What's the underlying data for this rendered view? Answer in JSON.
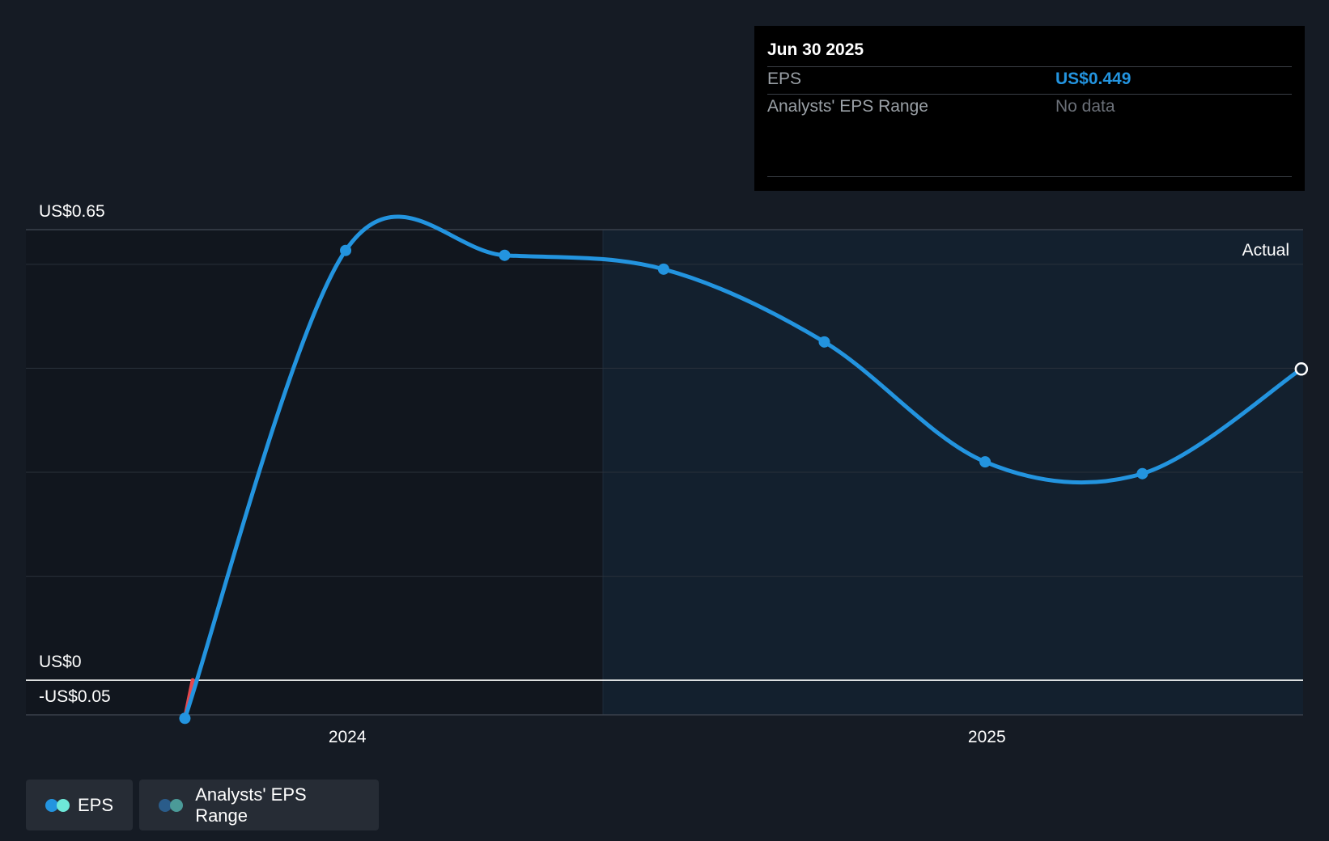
{
  "chart_data": {
    "type": "line",
    "x": [
      "2023-09-30",
      "2023-12-31",
      "2024-03-31",
      "2024-06-30",
      "2024-09-30",
      "2024-12-31",
      "2025-03-31",
      "2025-06-30"
    ],
    "series": [
      {
        "name": "EPS",
        "values": [
          -0.055,
          0.62,
          0.613,
          0.593,
          0.488,
          0.315,
          0.298,
          0.449
        ]
      }
    ],
    "y_tick_labels": [
      "US$0.65",
      "US$0",
      "-US$0.05"
    ],
    "x_tick_labels": [
      "2024",
      "2025"
    ],
    "ylim": [
      -0.05,
      0.65
    ],
    "forecast_region_label": "Actual",
    "grid": true,
    "colors": {
      "eps": "#2394df",
      "negative_segment": "#e5484d",
      "zero_line": "#ffffff"
    }
  },
  "tooltip": {
    "date": "Jun 30 2025",
    "rows": [
      {
        "label": "EPS",
        "value": "US$0.449"
      },
      {
        "label": "Analysts' EPS Range",
        "value": "No data"
      }
    ]
  },
  "legend": {
    "items": [
      {
        "label": "EPS",
        "colors": [
          "#2394df",
          "#6ee7d8"
        ]
      },
      {
        "label": "Analysts' EPS Range",
        "colors": [
          "#2a5c8a",
          "#4b9a98"
        ]
      }
    ]
  }
}
